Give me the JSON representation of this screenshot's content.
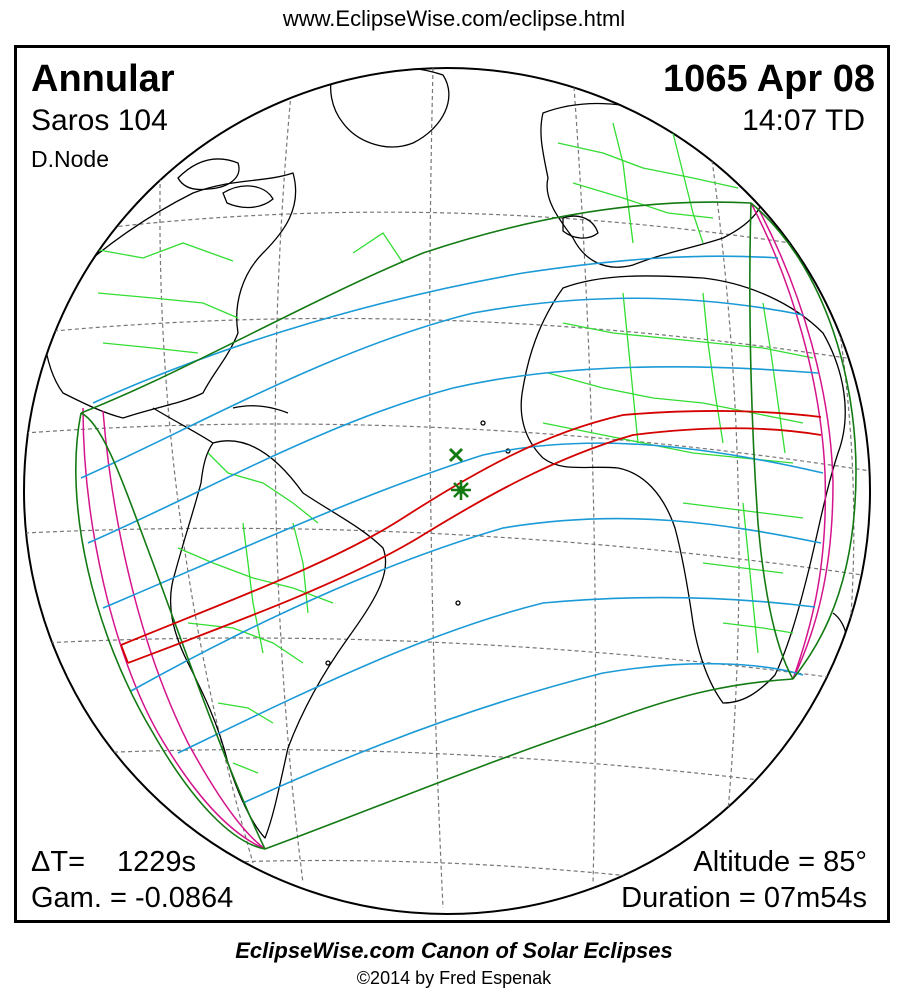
{
  "header": {
    "url": "www.EclipseWise.com/eclipse.html"
  },
  "eclipse": {
    "type": "Annular",
    "saros": "Saros 104",
    "node": "D.Node",
    "date": "1065 Apr 08",
    "time": "14:07 TD"
  },
  "stats": {
    "delta_t_label": "ΔT=",
    "delta_t_value": "1229s",
    "gamma": "Gam. = -0.0864",
    "altitude": "Altitude = 85°",
    "duration": "Duration = 07m54s"
  },
  "footer": {
    "canon": "EclipseWise.com Canon of Solar Eclipses",
    "copyright": "©2014 by Fred Espenak"
  },
  "colors": {
    "central_path": "#d40000",
    "penumbral_lines": "#1a9ad6",
    "outer_limits": "#137a13",
    "rise_set": "#d4148c",
    "coastlines": "#000000",
    "borders": "#33dd33"
  },
  "markers": [
    "greatest-eclipse-star",
    "greatest-duration-x"
  ]
}
